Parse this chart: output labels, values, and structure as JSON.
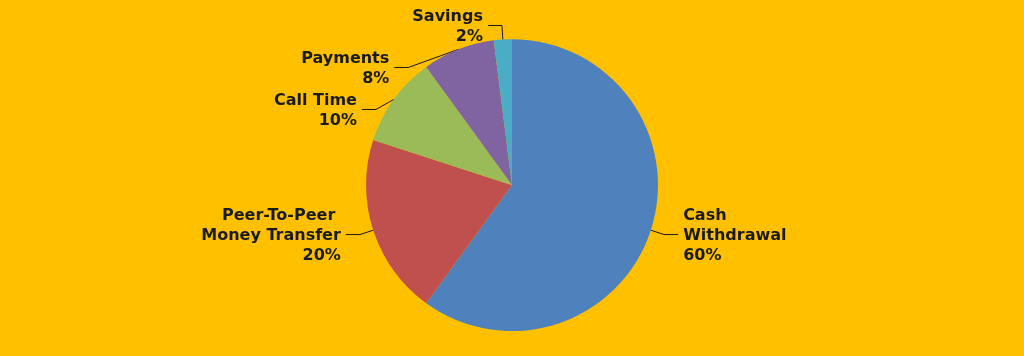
{
  "chart_data": {
    "type": "pie",
    "categories": [
      "Cash Withdrawal",
      "Peer-To-Peer Money Transfer",
      "Call Time",
      "Payments",
      "Savings"
    ],
    "values": [
      60,
      20,
      10,
      8,
      2
    ],
    "value_labels": [
      "60%",
      "20%",
      "10%",
      "8%",
      "2%"
    ],
    "colors": [
      "#4f81bd",
      "#c0504d",
      "#9bbb59",
      "#8064a2",
      "#4bacc6"
    ],
    "legend": false
  }
}
